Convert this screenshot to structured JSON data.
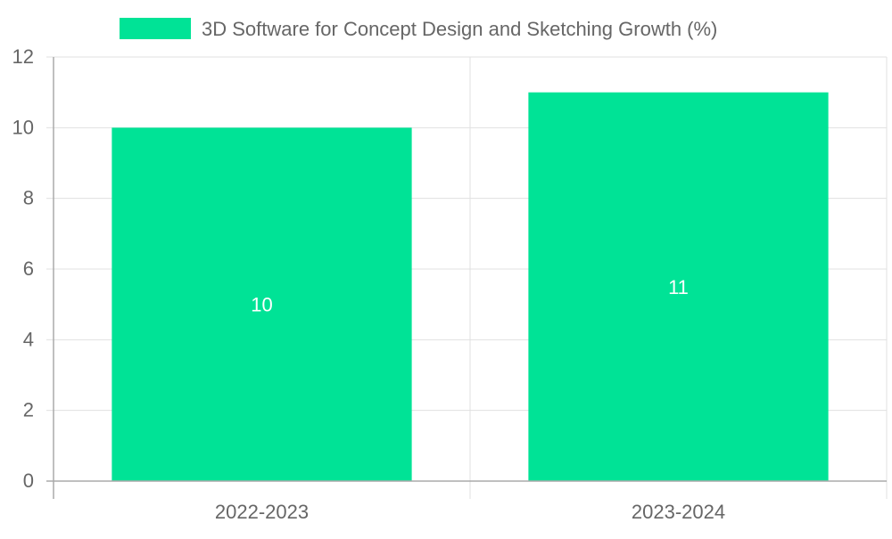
{
  "chart_data": {
    "type": "bar",
    "categories": [
      "2022-2023",
      "2023-2024"
    ],
    "series": [
      {
        "name": "3D Software for Concept Design and Sketching Growth (%)",
        "values": [
          10,
          11
        ],
        "color": "#00E396"
      }
    ],
    "ylim": [
      0,
      12
    ],
    "yticks": [
      0,
      2,
      4,
      6,
      8,
      10,
      12
    ],
    "ytick_labels": [
      "0",
      "2",
      "4",
      "6",
      "8",
      "10",
      "12"
    ],
    "data_labels": [
      "10",
      "11"
    ],
    "legend_position": "top-center",
    "grid": true,
    "title": "",
    "xlabel": "",
    "ylabel": ""
  }
}
